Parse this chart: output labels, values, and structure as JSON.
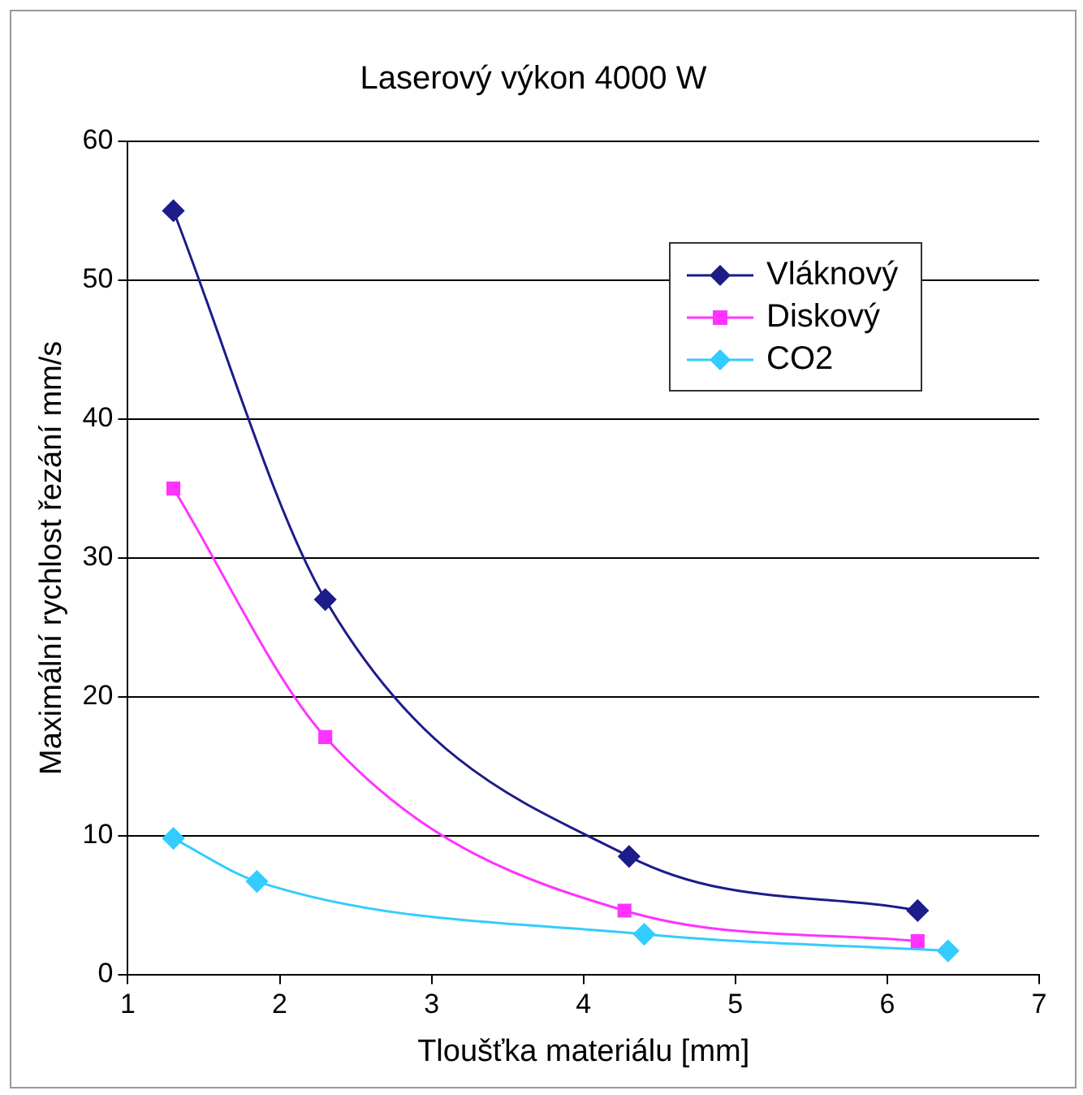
{
  "chart_data": {
    "type": "line",
    "title": "Laserový výkon 4000 W",
    "xlabel": "Tloušťka materiálu [mm]",
    "ylabel": "Maximální rychlost řezání mm/s",
    "xlim": [
      1,
      7
    ],
    "xticks": [
      1,
      2,
      3,
      4,
      5,
      6,
      7
    ],
    "ylim": [
      0,
      60
    ],
    "yticks": [
      0,
      10,
      20,
      30,
      40,
      50,
      60
    ],
    "grid": "y",
    "legend": "top right",
    "series": [
      {
        "name": "Vláknový",
        "color": "#1c1c8a",
        "marker": "diamond",
        "x": [
          1.3,
          2.3,
          4.3,
          6.2
        ],
        "values": [
          55,
          27,
          8.5,
          4.6
        ]
      },
      {
        "name": "Diskový",
        "color": "#ff33ff",
        "marker": "square",
        "x": [
          1.3,
          2.3,
          4.27,
          6.2
        ],
        "values": [
          35,
          17.1,
          4.6,
          2.4
        ]
      },
      {
        "name": "CO2",
        "color": "#33ccff",
        "marker": "diamond",
        "x": [
          1.3,
          1.85,
          4.4,
          6.4
        ],
        "values": [
          9.8,
          6.7,
          2.9,
          1.7
        ]
      }
    ]
  }
}
